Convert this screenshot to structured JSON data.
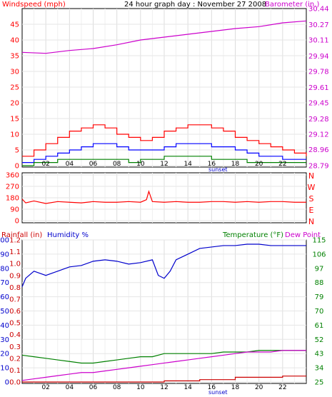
{
  "chart_data": [
    {
      "type": "line",
      "title": "24 hour graph day : November 27 2008",
      "left_axis_label": "Windspeed (mph)",
      "right_axis_label": "Barometer (in.)",
      "x_ticks": [
        "02",
        "04",
        "06",
        "08",
        "10",
        "12",
        "14",
        "16",
        "18",
        "20",
        "22"
      ],
      "x_marker": "sunset",
      "left_ticks": [
        "0",
        "5",
        "10",
        "15",
        "20",
        "25",
        "30",
        "35",
        "40",
        "45"
      ],
      "left_ylim": [
        0,
        50
      ],
      "right_ticks": [
        "28.79",
        "28.96",
        "29.12",
        "29.28",
        "29.45",
        "29.61",
        "29.78",
        "29.94",
        "30.11",
        "30.27",
        "30.44"
      ],
      "right_ylim": [
        28.79,
        30.44
      ],
      "grid": true,
      "series": [
        {
          "name": "Windspeed",
          "axis": "left",
          "color": "#ff0000",
          "x": [
            0,
            1,
            2,
            3,
            4,
            5,
            6,
            7,
            8,
            9,
            10,
            11,
            12,
            13,
            14,
            15,
            16,
            17,
            18,
            19,
            20,
            21,
            22,
            23,
            24
          ],
          "y": [
            3,
            5,
            7,
            9,
            11,
            12,
            13,
            12,
            10,
            9,
            8,
            9,
            11,
            12,
            13,
            13,
            12,
            11,
            9,
            8,
            7,
            6,
            5,
            4,
            3
          ]
        },
        {
          "name": "Average wind",
          "axis": "left",
          "color": "#0000ff",
          "x": [
            0,
            1,
            2,
            3,
            4,
            5,
            6,
            7,
            8,
            9,
            10,
            11,
            12,
            13,
            14,
            15,
            16,
            17,
            18,
            19,
            20,
            21,
            22,
            23,
            24
          ],
          "y": [
            1,
            2,
            3,
            4,
            5,
            6,
            7,
            7,
            6,
            5,
            5,
            5,
            6,
            7,
            7,
            7,
            6,
            6,
            5,
            4,
            3,
            3,
            2,
            2,
            2
          ]
        },
        {
          "name": "Gust low",
          "axis": "left",
          "color": "#008000",
          "x": [
            0,
            1,
            2,
            3,
            4,
            5,
            6,
            7,
            8,
            9,
            10,
            11,
            12,
            13,
            14,
            15,
            16,
            17,
            18,
            19,
            20,
            21,
            22,
            23,
            24
          ],
          "y": [
            0,
            1,
            1,
            2,
            2,
            2,
            2,
            2,
            2,
            1,
            2,
            2,
            3,
            3,
            3,
            3,
            2,
            2,
            2,
            1,
            1,
            1,
            1,
            1,
            1
          ]
        },
        {
          "name": "Barometer",
          "axis": "right",
          "color": "#cc00cc",
          "x": [
            0,
            2,
            4,
            6,
            8,
            10,
            12,
            14,
            16,
            18,
            20,
            22,
            24
          ],
          "y": [
            29.98,
            29.97,
            30.0,
            30.02,
            30.06,
            30.11,
            30.14,
            30.17,
            30.2,
            30.23,
            30.25,
            30.29,
            30.31
          ]
        }
      ]
    },
    {
      "type": "line",
      "left_ticks": [
        "360",
        "270",
        "180",
        "90",
        "0"
      ],
      "ylim": [
        0,
        360
      ],
      "right_labels": [
        "N",
        "W",
        "S",
        "E",
        "N"
      ],
      "grid": true,
      "series": [
        {
          "name": "Wind direction",
          "color": "#ff0000",
          "x": [
            0,
            0.3,
            1,
            2,
            3,
            4,
            5,
            6,
            7,
            8,
            9,
            10,
            10.5,
            10.7,
            11,
            12,
            13,
            14,
            15,
            16,
            17,
            18,
            19,
            20,
            21,
            22,
            23,
            24
          ],
          "y": [
            170,
            140,
            155,
            135,
            150,
            145,
            140,
            150,
            145,
            145,
            150,
            145,
            165,
            230,
            150,
            145,
            150,
            145,
            145,
            150,
            150,
            145,
            150,
            145,
            150,
            150,
            145,
            145
          ]
        }
      ]
    },
    {
      "type": "line",
      "left_axis_label_a": "Rainfall (in)",
      "left_axis_label_b": "Humidity %",
      "right_axis_label_a": "Temperature (°F)",
      "right_axis_label_b": "Dew Point",
      "x_ticks": [
        "02",
        "04",
        "06",
        "08",
        "10",
        "12",
        "14",
        "16",
        "18",
        "20",
        "22"
      ],
      "x_marker": "sunset",
      "humidity_ticks": [
        "0",
        "10",
        "20",
        "30",
        "40",
        "50",
        "60",
        "70",
        "80",
        "90",
        "100"
      ],
      "humidity_ylim": [
        0,
        100
      ],
      "rain_ticks": [
        "0.0",
        "0.1",
        "0.2",
        "0.3",
        "0.4",
        "0.5",
        "0.6",
        "0.7",
        "0.8",
        "0.9",
        "1.0",
        "1.1",
        "1.2"
      ],
      "rain_ylim": [
        0,
        1.2
      ],
      "temp_ticks": [
        "25",
        "34",
        "43",
        "52",
        "61",
        "70",
        "79",
        "88",
        "97",
        "106",
        "115"
      ],
      "temp_ylim": [
        25,
        115
      ],
      "grid": true,
      "series": [
        {
          "name": "Humidity %",
          "axis": "humidity",
          "color": "#0000cc",
          "x": [
            0,
            0.3,
            1,
            2,
            3,
            4,
            5,
            6,
            7,
            8,
            9,
            10,
            11,
            11.5,
            12,
            12.5,
            13,
            14,
            15,
            16,
            17,
            18,
            19,
            20,
            21,
            22,
            23,
            24
          ],
          "y": [
            67,
            73,
            78,
            75,
            78,
            81,
            82,
            85,
            86,
            85,
            83,
            84,
            86,
            75,
            73,
            78,
            86,
            90,
            94,
            95,
            96,
            96,
            97,
            97,
            96,
            96,
            96,
            96
          ]
        },
        {
          "name": "Temperature (°F)",
          "axis": "temp",
          "color": "#008000",
          "x": [
            0,
            1,
            2,
            3,
            4,
            5,
            6,
            7,
            8,
            9,
            10,
            11,
            12,
            13,
            14,
            15,
            16,
            17,
            18,
            19,
            20,
            21,
            22,
            23,
            24
          ],
          "y": [
            42,
            41,
            40,
            39,
            38,
            37,
            37,
            38,
            39,
            40,
            41,
            41,
            43,
            43,
            43,
            43,
            43,
            44,
            44,
            44,
            45,
            45,
            45,
            45,
            45
          ]
        },
        {
          "name": "Dew Point",
          "axis": "temp",
          "color": "#cc00cc",
          "x": [
            0,
            1,
            2,
            3,
            4,
            5,
            6,
            7,
            8,
            9,
            10,
            11,
            12,
            13,
            14,
            15,
            16,
            17,
            18,
            19,
            20,
            21,
            22,
            23,
            24
          ],
          "y": [
            26,
            27,
            28,
            29,
            30,
            31,
            31,
            32,
            33,
            34,
            35,
            36,
            37,
            38,
            39,
            40,
            41,
            42,
            43,
            44,
            44,
            44,
            45,
            45,
            45
          ]
        },
        {
          "name": "Rainfall (in)",
          "axis": "rain",
          "color": "#cc0000",
          "x": [
            0,
            10,
            12,
            15,
            18,
            22,
            24
          ],
          "y": [
            0,
            0,
            0.01,
            0.02,
            0.04,
            0.05,
            0.05
          ]
        }
      ]
    }
  ]
}
